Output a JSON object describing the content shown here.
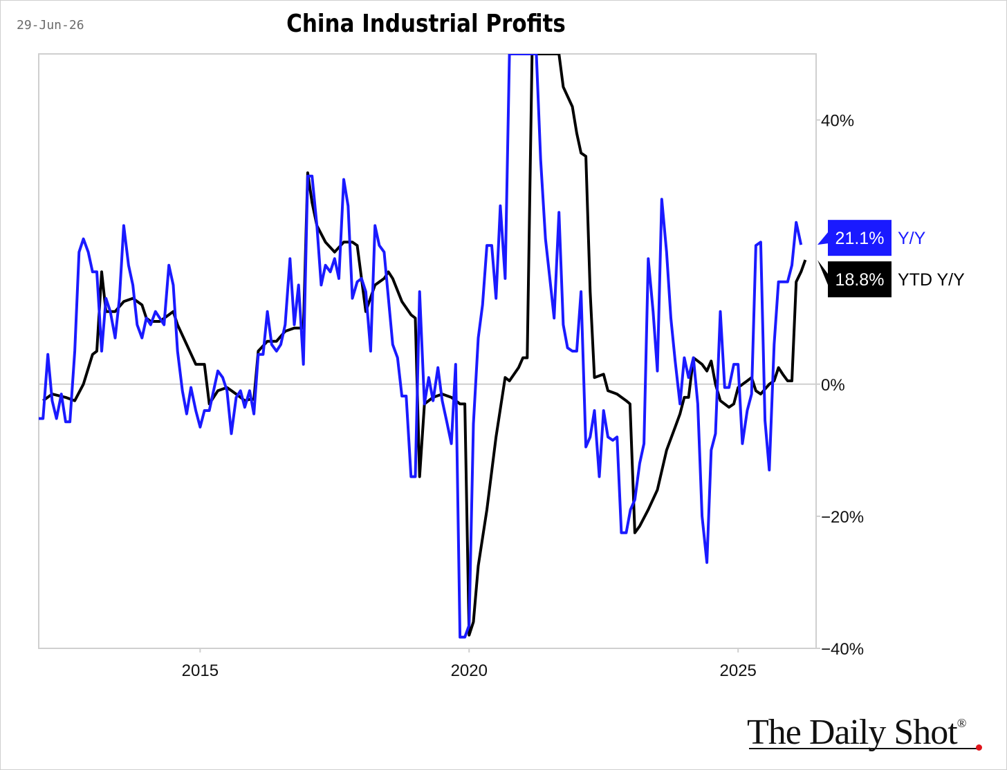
{
  "date": "29-Jun-26",
  "title": "China Industrial Profits",
  "logo_text": "The Daily Shot",
  "logo_reg": "®",
  "chart_data": {
    "type": "line",
    "title": "China Industrial Profits",
    "xlim": [
      2012.0,
      2026.45
    ],
    "ylim": [
      -40,
      50
    ],
    "x_ticks": [
      {
        "value": 2015,
        "label": "2015"
      },
      {
        "value": 2020,
        "label": "2020"
      },
      {
        "value": 2025,
        "label": "2025"
      }
    ],
    "y_ticks": [
      {
        "value": 40,
        "label": "40%"
      },
      {
        "value": 0,
        "label": "0%"
      },
      {
        "value": -20,
        "label": "−20%"
      },
      {
        "value": -40,
        "label": "−40%"
      }
    ],
    "zero_line": true,
    "series": [
      {
        "name": "Y/Y",
        "color": "#1a1aff",
        "end_label": "21.1%",
        "points": [
          [
            2012.0,
            -5.2
          ],
          [
            2012.08,
            -5.2
          ],
          [
            2012.17,
            4.5
          ],
          [
            2012.25,
            -2.5
          ],
          [
            2012.33,
            -5.2
          ],
          [
            2012.42,
            -1.5
          ],
          [
            2012.5,
            -5.7
          ],
          [
            2012.58,
            -5.7
          ],
          [
            2012.67,
            5
          ],
          [
            2012.75,
            20
          ],
          [
            2012.83,
            22
          ],
          [
            2012.92,
            20
          ],
          [
            2013.0,
            17
          ],
          [
            2013.08,
            17
          ],
          [
            2013.17,
            5
          ],
          [
            2013.25,
            13
          ],
          [
            2013.33,
            11
          ],
          [
            2013.42,
            7
          ],
          [
            2013.5,
            13
          ],
          [
            2013.58,
            24
          ],
          [
            2013.67,
            18
          ],
          [
            2013.75,
            15
          ],
          [
            2013.83,
            9
          ],
          [
            2013.92,
            7
          ],
          [
            2014.0,
            10
          ],
          [
            2014.08,
            9
          ],
          [
            2014.17,
            11
          ],
          [
            2014.25,
            10
          ],
          [
            2014.33,
            9
          ],
          [
            2014.42,
            18
          ],
          [
            2014.5,
            15
          ],
          [
            2014.58,
            5
          ],
          [
            2014.67,
            -1
          ],
          [
            2014.75,
            -4.5
          ],
          [
            2014.83,
            -0.5
          ],
          [
            2014.92,
            -4
          ],
          [
            2015.0,
            -6.5
          ],
          [
            2015.08,
            -4
          ],
          [
            2015.17,
            -4
          ],
          [
            2015.25,
            -1
          ],
          [
            2015.33,
            2
          ],
          [
            2015.42,
            1
          ],
          [
            2015.5,
            -1
          ],
          [
            2015.58,
            -7.5
          ],
          [
            2015.67,
            -2
          ],
          [
            2015.75,
            -1
          ],
          [
            2015.83,
            -3.5
          ],
          [
            2015.92,
            -1
          ],
          [
            2016.0,
            -4.5
          ],
          [
            2016.08,
            4.5
          ],
          [
            2016.17,
            4.5
          ],
          [
            2016.25,
            11
          ],
          [
            2016.33,
            6
          ],
          [
            2016.42,
            5
          ],
          [
            2016.5,
            6
          ],
          [
            2016.58,
            9
          ],
          [
            2016.67,
            19
          ],
          [
            2016.75,
            9
          ],
          [
            2016.83,
            15
          ],
          [
            2016.92,
            3
          ],
          [
            2017.0,
            31.5
          ],
          [
            2017.08,
            31.5
          ],
          [
            2017.17,
            24
          ],
          [
            2017.25,
            15
          ],
          [
            2017.33,
            18
          ],
          [
            2017.42,
            17
          ],
          [
            2017.5,
            19
          ],
          [
            2017.58,
            16
          ],
          [
            2017.67,
            31
          ],
          [
            2017.75,
            27
          ],
          [
            2017.83,
            13
          ],
          [
            2017.92,
            15.5
          ],
          [
            2018.0,
            16
          ],
          [
            2018.08,
            14
          ],
          [
            2018.17,
            5
          ],
          [
            2018.25,
            24
          ],
          [
            2018.33,
            21
          ],
          [
            2018.42,
            20
          ],
          [
            2018.5,
            13
          ],
          [
            2018.58,
            6
          ],
          [
            2018.67,
            4
          ],
          [
            2018.75,
            -1.8
          ],
          [
            2018.83,
            -1.8
          ],
          [
            2018.92,
            -14
          ],
          [
            2019.0,
            -14
          ],
          [
            2019.08,
            14
          ],
          [
            2019.17,
            -3
          ],
          [
            2019.25,
            1
          ],
          [
            2019.33,
            -2.5
          ],
          [
            2019.42,
            2.5
          ],
          [
            2019.5,
            -2.5
          ],
          [
            2019.58,
            -5.5
          ],
          [
            2019.67,
            -9
          ],
          [
            2019.75,
            3
          ],
          [
            2019.83,
            -38.3
          ],
          [
            2019.92,
            -38.3
          ],
          [
            2020.0,
            -36.5
          ],
          [
            2020.08,
            -6
          ],
          [
            2020.17,
            7
          ],
          [
            2020.25,
            12
          ],
          [
            2020.33,
            21
          ],
          [
            2020.42,
            21
          ],
          [
            2020.5,
            13
          ],
          [
            2020.58,
            27
          ],
          [
            2020.67,
            16
          ],
          [
            2020.75,
            50
          ],
          [
            2020.83,
            50
          ],
          [
            2020.92,
            50
          ],
          [
            2021.0,
            50
          ],
          [
            2021.08,
            50
          ],
          [
            2021.17,
            50
          ],
          [
            2021.25,
            50
          ],
          [
            2021.33,
            34
          ],
          [
            2021.42,
            22
          ],
          [
            2021.5,
            16
          ],
          [
            2021.58,
            10
          ],
          [
            2021.67,
            26
          ],
          [
            2021.75,
            9
          ],
          [
            2021.83,
            5.5
          ],
          [
            2021.92,
            5
          ],
          [
            2022.0,
            5
          ],
          [
            2022.08,
            14
          ],
          [
            2022.17,
            -9.5
          ],
          [
            2022.25,
            -8
          ],
          [
            2022.33,
            -4
          ],
          [
            2022.42,
            -14
          ],
          [
            2022.5,
            -4
          ],
          [
            2022.58,
            -8
          ],
          [
            2022.67,
            -8.5
          ],
          [
            2022.75,
            -8
          ],
          [
            2022.83,
            -22.5
          ],
          [
            2022.92,
            -22.5
          ],
          [
            2023.0,
            -19
          ],
          [
            2023.08,
            -17.5
          ],
          [
            2023.17,
            -12
          ],
          [
            2023.25,
            -9
          ],
          [
            2023.33,
            19
          ],
          [
            2023.42,
            11
          ],
          [
            2023.5,
            2
          ],
          [
            2023.58,
            28
          ],
          [
            2023.67,
            20
          ],
          [
            2023.75,
            10
          ],
          [
            2023.83,
            3.5
          ],
          [
            2023.92,
            -3
          ],
          [
            2024.0,
            4
          ],
          [
            2024.08,
            1
          ],
          [
            2024.17,
            4
          ],
          [
            2024.25,
            -3
          ],
          [
            2024.33,
            -20
          ],
          [
            2024.42,
            -27
          ],
          [
            2024.5,
            -10
          ],
          [
            2024.58,
            -7.5
          ],
          [
            2024.67,
            11
          ],
          [
            2024.75,
            -0.5
          ],
          [
            2024.83,
            -0.5
          ],
          [
            2024.92,
            3
          ],
          [
            2025.0,
            3
          ],
          [
            2025.08,
            -9
          ],
          [
            2025.17,
            -4
          ],
          [
            2025.25,
            -1.5
          ],
          [
            2025.33,
            21
          ],
          [
            2025.42,
            21.5
          ],
          [
            2025.5,
            -5.5
          ],
          [
            2025.58,
            -13
          ],
          [
            2025.67,
            6
          ],
          [
            2025.75,
            15.5
          ],
          [
            2025.83,
            15.5
          ],
          [
            2025.92,
            15.5
          ],
          [
            2026.0,
            18
          ],
          [
            2026.08,
            24.5
          ],
          [
            2026.17,
            21.1
          ]
        ]
      },
      {
        "name": "YTD Y/Y",
        "color": "#000000",
        "end_label": "18.8%",
        "points": [
          [
            2012.08,
            -2.5
          ],
          [
            2012.25,
            -1.5
          ],
          [
            2012.5,
            -2
          ],
          [
            2012.67,
            -2.5
          ],
          [
            2012.83,
            0
          ],
          [
            2013.0,
            4.5
          ],
          [
            2013.08,
            5
          ],
          [
            2013.17,
            17
          ],
          [
            2013.25,
            11
          ],
          [
            2013.42,
            11
          ],
          [
            2013.58,
            12.5
          ],
          [
            2013.75,
            13
          ],
          [
            2013.92,
            12
          ],
          [
            2014.0,
            10
          ],
          [
            2014.08,
            9.5
          ],
          [
            2014.25,
            9.5
          ],
          [
            2014.42,
            10.5
          ],
          [
            2014.5,
            11
          ],
          [
            2014.58,
            9
          ],
          [
            2014.75,
            6
          ],
          [
            2014.92,
            3
          ],
          [
            2015.08,
            3
          ],
          [
            2015.17,
            -3
          ],
          [
            2015.33,
            -1
          ],
          [
            2015.5,
            -0.5
          ],
          [
            2015.67,
            -1.5
          ],
          [
            2015.83,
            -2.5
          ],
          [
            2015.92,
            -2.3
          ],
          [
            2016.0,
            -2.3
          ],
          [
            2016.08,
            5
          ],
          [
            2016.25,
            6.5
          ],
          [
            2016.42,
            6.5
          ],
          [
            2016.58,
            8
          ],
          [
            2016.75,
            8.5
          ],
          [
            2016.92,
            8.5
          ],
          [
            2017.0,
            32
          ],
          [
            2017.08,
            27.5
          ],
          [
            2017.17,
            24
          ],
          [
            2017.33,
            21.5
          ],
          [
            2017.5,
            20
          ],
          [
            2017.67,
            21.5
          ],
          [
            2017.83,
            21.5
          ],
          [
            2017.92,
            21
          ],
          [
            2018.0,
            16
          ],
          [
            2018.08,
            11
          ],
          [
            2018.25,
            15
          ],
          [
            2018.42,
            16
          ],
          [
            2018.5,
            17
          ],
          [
            2018.58,
            16
          ],
          [
            2018.75,
            12.5
          ],
          [
            2018.92,
            10.5
          ],
          [
            2019.0,
            10
          ],
          [
            2019.08,
            -14
          ],
          [
            2019.17,
            -3
          ],
          [
            2019.33,
            -2
          ],
          [
            2019.5,
            -1.5
          ],
          [
            2019.67,
            -2
          ],
          [
            2019.83,
            -3
          ],
          [
            2019.92,
            -3
          ],
          [
            2020.0,
            -38
          ],
          [
            2020.08,
            -36
          ],
          [
            2020.17,
            -27.5
          ],
          [
            2020.33,
            -19
          ],
          [
            2020.5,
            -8
          ],
          [
            2020.67,
            1
          ],
          [
            2020.75,
            0.5
          ],
          [
            2020.92,
            2.5
          ],
          [
            2021.0,
            4
          ],
          [
            2021.08,
            4
          ],
          [
            2021.17,
            50
          ],
          [
            2021.33,
            50
          ],
          [
            2021.5,
            50
          ],
          [
            2021.67,
            50
          ],
          [
            2021.75,
            45
          ],
          [
            2021.92,
            42
          ],
          [
            2022.0,
            38
          ],
          [
            2022.08,
            35
          ],
          [
            2022.17,
            34.5
          ],
          [
            2022.25,
            14
          ],
          [
            2022.33,
            1
          ],
          [
            2022.5,
            1.5
          ],
          [
            2022.58,
            -1
          ],
          [
            2022.75,
            -1.5
          ],
          [
            2022.92,
            -2.5
          ],
          [
            2022.99,
            -3
          ],
          [
            2023.08,
            -22.5
          ],
          [
            2023.17,
            -21.5
          ],
          [
            2023.33,
            -19
          ],
          [
            2023.5,
            -16
          ],
          [
            2023.67,
            -10
          ],
          [
            2023.83,
            -6.5
          ],
          [
            2023.92,
            -4.5
          ],
          [
            2024.0,
            -2
          ],
          [
            2024.08,
            -2
          ],
          [
            2024.17,
            4
          ],
          [
            2024.25,
            3.5
          ],
          [
            2024.33,
            3
          ],
          [
            2024.42,
            2
          ],
          [
            2024.5,
            3.5
          ],
          [
            2024.58,
            0
          ],
          [
            2024.67,
            -2.5
          ],
          [
            2024.83,
            -3.5
          ],
          [
            2024.92,
            -3
          ],
          [
            2025.0,
            -0.5
          ],
          [
            2025.17,
            0.5
          ],
          [
            2025.25,
            1
          ],
          [
            2025.33,
            -1
          ],
          [
            2025.42,
            -1.5
          ],
          [
            2025.58,
            0
          ],
          [
            2025.67,
            0.5
          ],
          [
            2025.75,
            2.5
          ],
          [
            2025.83,
            1.5
          ],
          [
            2025.92,
            0.5
          ],
          [
            2026.0,
            0.5
          ],
          [
            2026.08,
            15.5
          ],
          [
            2026.17,
            17
          ],
          [
            2026.25,
            18.8
          ]
        ]
      }
    ]
  }
}
